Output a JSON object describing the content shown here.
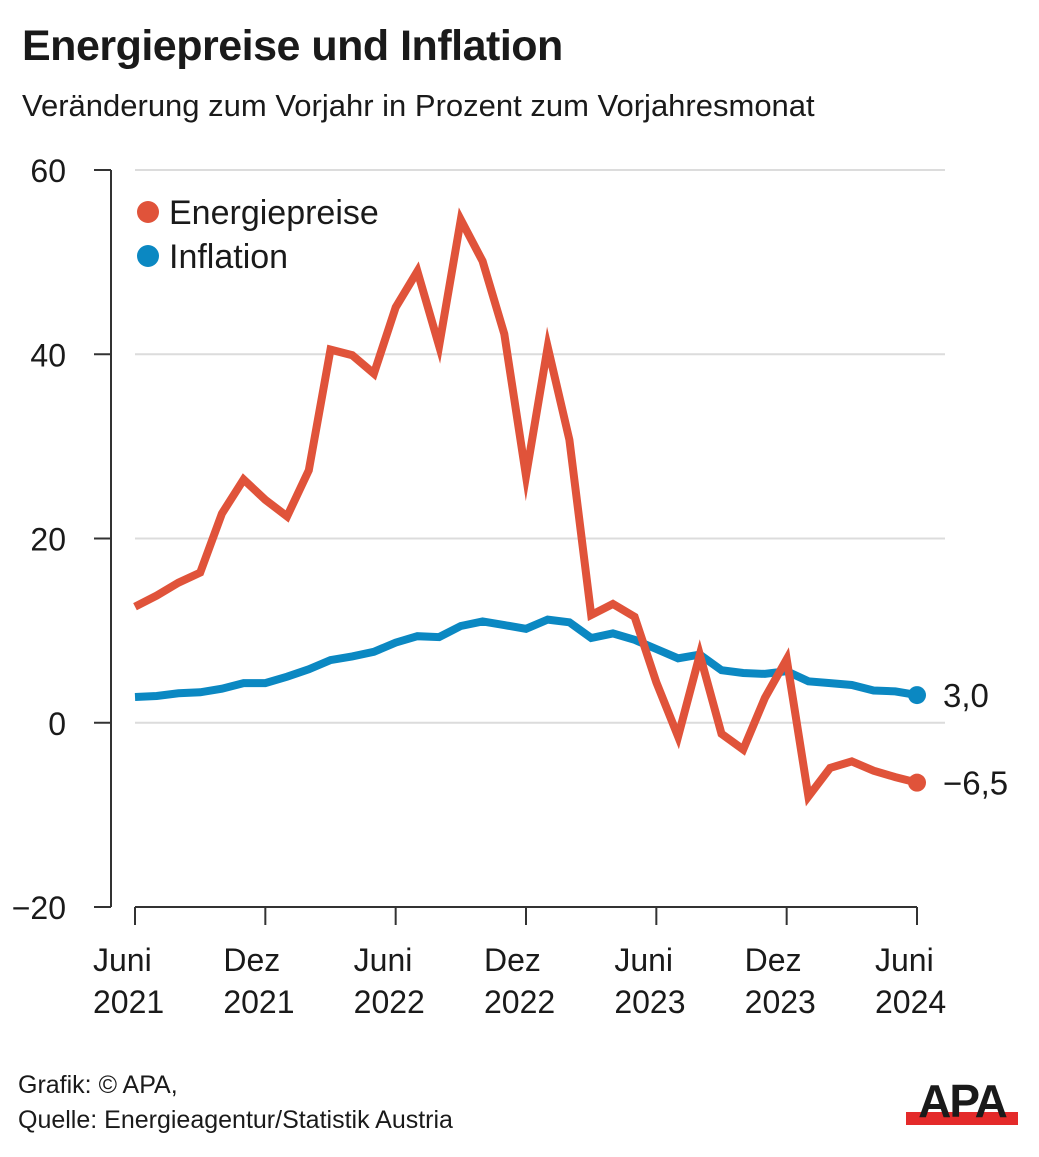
{
  "header": {
    "title": "Energiepreise und Inflation",
    "subtitle": "Veränderung zum Vorjahr in Prozent zum Vorjahresmonat"
  },
  "footer": {
    "credit": "Grafik: © APA,",
    "source": "Quelle: Energieagentur/Statistik Austria",
    "logo_text": "APA"
  },
  "colors": {
    "energiepreise": "#e0533a",
    "inflation": "#0b88c2",
    "grid": "#dcdcdc",
    "axis": "#333333",
    "logo_red": "#e42a2a",
    "logo_black": "#1a1a1a"
  },
  "chart_data": {
    "type": "line",
    "title": "Energiepreise und Inflation",
    "subtitle": "Veränderung zum Vorjahr in Prozent zum Vorjahresmonat",
    "xlabel": "",
    "ylabel": "",
    "ylim": [
      -20,
      60
    ],
    "yticks": [
      60,
      40,
      20,
      0,
      -20
    ],
    "ytick_labels": [
      "60",
      "40",
      "20",
      "0",
      "−20"
    ],
    "grid": true,
    "legend_position": "top-left",
    "x_start": "2021-06",
    "x_end": "2024-06",
    "xticks": [
      {
        "month_index": 0,
        "line1": "Juni",
        "line2": "2021"
      },
      {
        "month_index": 6,
        "line1": "Dez",
        "line2": "2021"
      },
      {
        "month_index": 12,
        "line1": "Juni",
        "line2": "2022"
      },
      {
        "month_index": 18,
        "line1": "Dez",
        "line2": "2022"
      },
      {
        "month_index": 24,
        "line1": "Juni",
        "line2": "2023"
      },
      {
        "month_index": 30,
        "line1": "Dez",
        "line2": "2023"
      },
      {
        "month_index": 36,
        "line1": "Juni",
        "line2": "2024"
      }
    ],
    "x": [
      "2021-06",
      "2021-07",
      "2021-08",
      "2021-09",
      "2021-10",
      "2021-11",
      "2021-12",
      "2022-01",
      "2022-02",
      "2022-03",
      "2022-04",
      "2022-05",
      "2022-06",
      "2022-07",
      "2022-08",
      "2022-09",
      "2022-10",
      "2022-11",
      "2022-12",
      "2023-01",
      "2023-02",
      "2023-03",
      "2023-04",
      "2023-05",
      "2023-06",
      "2023-07",
      "2023-08",
      "2023-09",
      "2023-10",
      "2023-11",
      "2023-12",
      "2024-01",
      "2024-02",
      "2024-03",
      "2024-04",
      "2024-05",
      "2024-06"
    ],
    "series": [
      {
        "name": "Energiepreise",
        "color_key": "energiepreise",
        "values": [
          12.6,
          13.8,
          15.2,
          16.3,
          22.7,
          26.4,
          24.2,
          22.4,
          27.4,
          40.5,
          39.9,
          37.9,
          45.1,
          49.0,
          40.9,
          54.6,
          50.1,
          42.2,
          26.8,
          40.8,
          30.7,
          11.7,
          12.9,
          11.5,
          4.4,
          -1.5,
          7.4,
          -1.2,
          -2.9,
          2.7,
          6.9,
          -8.0,
          -4.9,
          -4.2,
          -5.2,
          -5.9,
          -6.5
        ],
        "end_label": "−6,5"
      },
      {
        "name": "Inflation",
        "color_key": "inflation",
        "values": [
          2.8,
          2.9,
          3.2,
          3.3,
          3.7,
          4.3,
          4.3,
          5.0,
          5.8,
          6.8,
          7.2,
          7.7,
          8.7,
          9.4,
          9.3,
          10.5,
          11.0,
          10.6,
          10.2,
          11.2,
          10.9,
          9.2,
          9.7,
          9.0,
          8.0,
          7.0,
          7.4,
          5.7,
          5.4,
          5.3,
          5.6,
          4.5,
          4.3,
          4.1,
          3.5,
          3.4,
          3.0
        ],
        "end_label": "3,0"
      }
    ]
  }
}
